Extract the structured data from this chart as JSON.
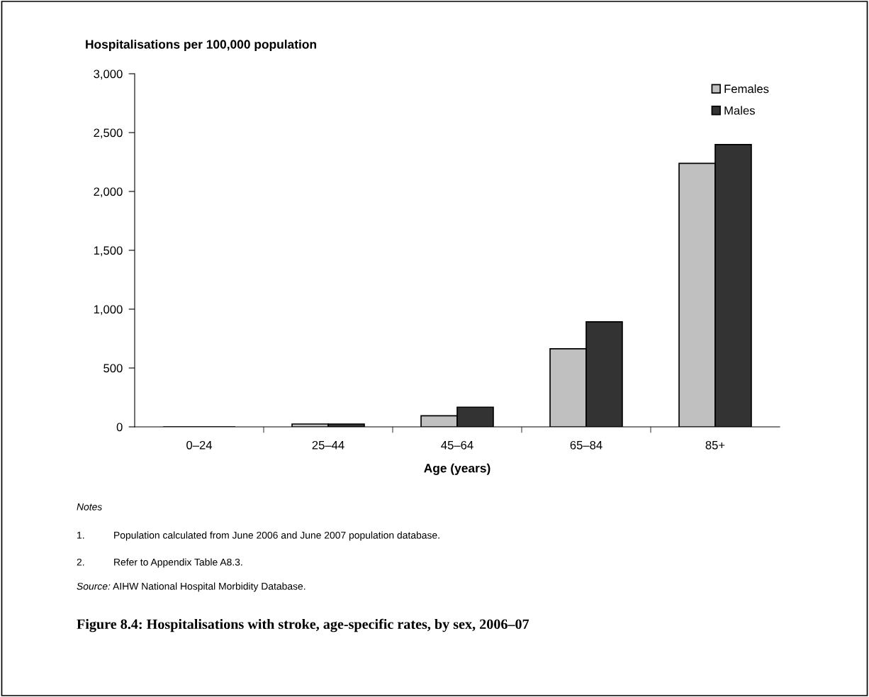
{
  "chart_data": {
    "type": "bar",
    "title": "Figure 8.4: Hospitalisations with stroke, age-specific rates, by sex, 2006–07",
    "ylabel": "Hospitalisations per 100,000 population",
    "xlabel": "Age (years)",
    "categories": [
      "0–24",
      "25–44",
      "45–64",
      "65–84",
      "85+"
    ],
    "series": [
      {
        "name": "Females",
        "color": "#c0c0c0",
        "values": [
          null,
          24,
          94,
          663,
          2239
        ]
      },
      {
        "name": "Males",
        "color": "#333333",
        "values": [
          null,
          24,
          167,
          892,
          2398
        ]
      }
    ],
    "ylim": [
      0,
      3000
    ],
    "yticks": [
      0,
      500,
      {
        "value": 1000,
        "label": "1,000"
      },
      {
        "value": 1500,
        "label": "1,500"
      },
      {
        "value": 2000,
        "label": "2,000"
      },
      {
        "value": 2500,
        "label": "2,500"
      },
      {
        "value": 3000,
        "label": "3,000"
      }
    ],
    "grid": false,
    "legend": "top right",
    "annotations": [
      "Notes",
      "1.\tPopulation calculated from June 2006 and June 2007 population database.",
      "2.\tRefer to Appendix Table A8.3.",
      "Source: AIHW National Hospital Morbidity Database."
    ]
  }
}
